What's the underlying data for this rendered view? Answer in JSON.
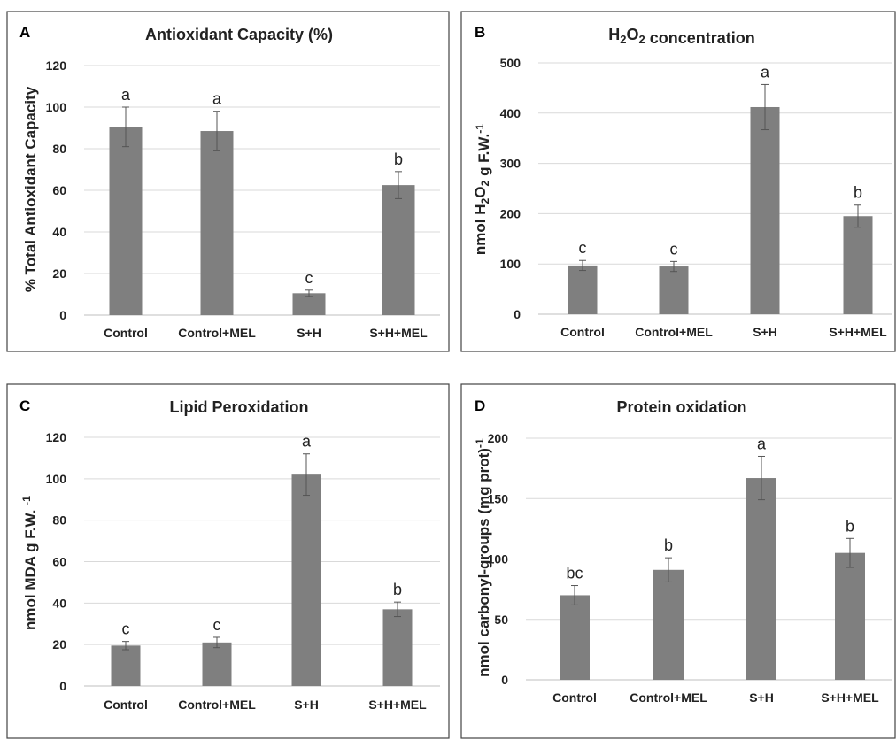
{
  "chart_data": [
    {
      "type": "bar",
      "panel": "A",
      "title": "Antioxidant Capacity (%)",
      "ylabel": "% Total Antioxidant Capacity",
      "categories": [
        "Control",
        "Control+MEL",
        "S+H",
        "S+H+MEL"
      ],
      "values": [
        90.5,
        88.5,
        10.5,
        62.5
      ],
      "errors": [
        9.5,
        9.5,
        1.5,
        6.5
      ],
      "significance": [
        "a",
        "a",
        "c",
        "b"
      ],
      "ylim": [
        0,
        120
      ],
      "yticks": [
        0,
        20,
        40,
        60,
        80,
        100,
        120
      ],
      "grid": true
    },
    {
      "type": "bar",
      "panel": "B",
      "title": "H2O2 concentration",
      "ylabel": "nmol H2O2 g F.W.-1",
      "categories": [
        "Control",
        "Control+MEL",
        "S+H",
        "S+H+MEL"
      ],
      "values": [
        97,
        95,
        412,
        195
      ],
      "errors": [
        10,
        10,
        45,
        22
      ],
      "significance": [
        "c",
        "c",
        "a",
        "b"
      ],
      "ylim": [
        0,
        500
      ],
      "yticks": [
        0,
        100,
        200,
        300,
        400,
        500
      ],
      "grid": true
    },
    {
      "type": "bar",
      "panel": "C",
      "title": "Lipid Peroxidation",
      "ylabel": "nmol MDA g F.W. -1",
      "categories": [
        "Control",
        "Control+MEL",
        "S+H",
        "S+H+MEL"
      ],
      "values": [
        19.5,
        21,
        102,
        37
      ],
      "errors": [
        2,
        2.5,
        10,
        3.5
      ],
      "significance": [
        "c",
        "c",
        "a",
        "b"
      ],
      "ylim": [
        0,
        120
      ],
      "yticks": [
        0,
        20,
        40,
        60,
        80,
        100,
        120
      ],
      "grid": true
    },
    {
      "type": "bar",
      "panel": "D",
      "title": "Protein oxidation",
      "ylabel": "nmol carbonyl-groups (mg prot)-1",
      "categories": [
        "Control",
        "Control+MEL",
        "S+H",
        "S+H+MEL"
      ],
      "values": [
        70,
        91,
        167,
        105
      ],
      "errors": [
        8,
        10,
        18,
        12
      ],
      "significance": [
        "bc",
        "b",
        "a",
        "b"
      ],
      "ylim": [
        0,
        200
      ],
      "yticks": [
        0,
        50,
        100,
        150,
        200
      ],
      "grid": true
    }
  ]
}
